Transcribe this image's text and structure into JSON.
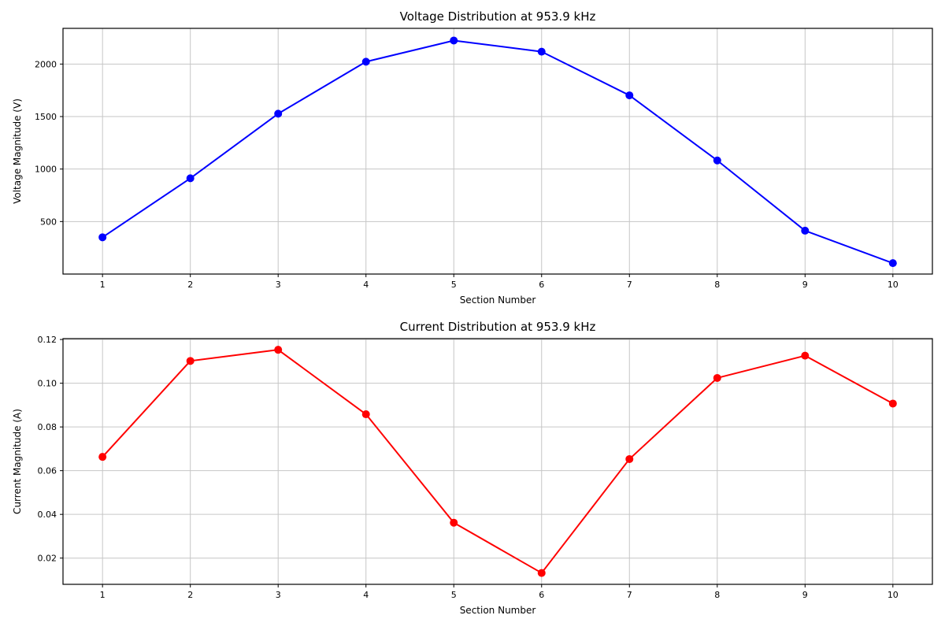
{
  "figure": {
    "background": "#ffffff",
    "grid_color": "#c6c6c6",
    "spine_color": "#000000"
  },
  "chart_data": [
    {
      "type": "line",
      "title": "Voltage Distribution at 953.9 kHz",
      "xlabel": "Section Number",
      "ylabel": "Voltage Magnitude (V)",
      "x": [
        1,
        2,
        3,
        4,
        5,
        6,
        7,
        8,
        9,
        10
      ],
      "series": [
        {
          "name": "voltage",
          "color": "#0000ff",
          "values": [
            350,
            912,
            1527,
            2022,
            2224,
            2118,
            1702,
            1082,
            413,
            104
          ]
        }
      ],
      "xlim": [
        0.55,
        10.45
      ],
      "ylim": [
        0,
        2340
      ],
      "xticks": [
        1,
        2,
        3,
        4,
        5,
        6,
        7,
        8,
        9,
        10
      ],
      "xtick_labels": [
        "1",
        "2",
        "3",
        "4",
        "5",
        "6",
        "7",
        "8",
        "9",
        "10"
      ],
      "yticks": [
        500,
        1000,
        1500,
        2000
      ],
      "ytick_labels": [
        "500",
        "1000",
        "1500",
        "2000"
      ],
      "grid": true,
      "legend": "none",
      "marker": "circle"
    },
    {
      "type": "line",
      "title": "Current Distribution at 953.9 kHz",
      "xlabel": "Section Number",
      "ylabel": "Current Magnitude (A)",
      "x": [
        1,
        2,
        3,
        4,
        5,
        6,
        7,
        8,
        9,
        10
      ],
      "series": [
        {
          "name": "current",
          "color": "#ff0000",
          "values": [
            0.0663,
            0.1102,
            0.1153,
            0.0858,
            0.0362,
            0.0132,
            0.0653,
            0.1024,
            0.1126,
            0.0907
          ]
        }
      ],
      "xlim": [
        0.55,
        10.45
      ],
      "ylim": [
        0.008,
        0.1204
      ],
      "xticks": [
        1,
        2,
        3,
        4,
        5,
        6,
        7,
        8,
        9,
        10
      ],
      "xtick_labels": [
        "1",
        "2",
        "3",
        "4",
        "5",
        "6",
        "7",
        "8",
        "9",
        "10"
      ],
      "yticks": [
        0.02,
        0.04,
        0.06,
        0.08,
        0.1,
        0.12
      ],
      "ytick_labels": [
        "0.02",
        "0.04",
        "0.06",
        "0.08",
        "0.10",
        "0.12"
      ],
      "grid": true,
      "legend": "none",
      "marker": "circle"
    }
  ]
}
